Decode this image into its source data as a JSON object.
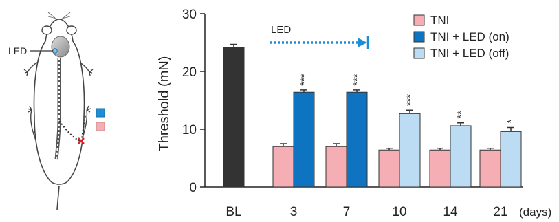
{
  "chart_data": {
    "type": "bar",
    "ylabel": "Threshold (mN)",
    "ylim": [
      0,
      30
    ],
    "yticks": [
      0,
      10,
      20,
      30
    ],
    "categories": [
      "BL",
      "3",
      "7",
      "10",
      "14",
      "21"
    ],
    "x_unit": "(days)",
    "baseline": {
      "value": 24.2,
      "error": 0.5,
      "color": "#333333"
    },
    "series": [
      {
        "name": "TNI",
        "color": "#f5aeb3",
        "values": [
          null,
          7.0,
          7.0,
          6.4,
          6.4,
          6.4
        ],
        "errors": [
          null,
          0.5,
          0.5,
          0.3,
          0.3,
          0.3
        ]
      },
      {
        "name": "TNI + LED (on)",
        "color": "#0e74c2",
        "values": [
          null,
          16.4,
          16.4,
          null,
          null,
          null
        ],
        "errors": [
          null,
          0.4,
          0.4,
          null,
          null,
          null
        ]
      },
      {
        "name": "TNI + LED (off)",
        "color": "#bcdcf3",
        "values": [
          null,
          null,
          null,
          12.7,
          10.6,
          9.6
        ],
        "errors": [
          null,
          null,
          null,
          0.6,
          0.5,
          0.7
        ]
      }
    ],
    "significance": [
      {
        "category": "3",
        "label": "***"
      },
      {
        "category": "7",
        "label": "***"
      },
      {
        "category": "10",
        "label": "***"
      },
      {
        "category": "14",
        "label": "**"
      },
      {
        "category": "21",
        "label": "*"
      }
    ],
    "led_arrow": {
      "label": "LED",
      "color": "#1a8fd6"
    }
  },
  "illustration": {
    "led_label": "LED",
    "marker_colors": [
      "#1a8fd6",
      "#f5aeb3"
    ],
    "injury_color": "#e02020"
  }
}
